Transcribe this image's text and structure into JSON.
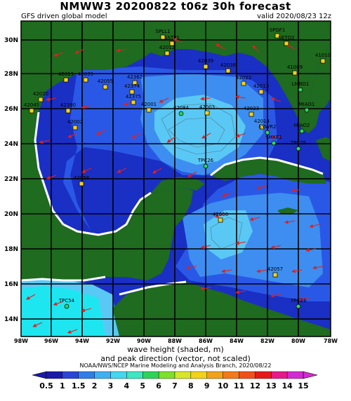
{
  "header": {
    "title": "NMWW3 20200822 t06z    30h forecast",
    "model": "GFS driven global model",
    "valid": "valid 2020/08/23 12z"
  },
  "axes": {
    "lat_labels": [
      "30N",
      "28N",
      "26N",
      "24N",
      "22N",
      "20N",
      "18N",
      "16N",
      "14N"
    ],
    "lon_labels": [
      "98W",
      "96W",
      "94W",
      "92W",
      "90W",
      "88W",
      "86W",
      "84W",
      "82W",
      "80W",
      "78W"
    ]
  },
  "stations": [
    {
      "id": "SPLL1",
      "type": "square"
    },
    {
      "id": "SSTP1",
      "type": "square"
    },
    {
      "id": "42012",
      "type": "square"
    },
    {
      "id": "42039",
      "type": "square"
    },
    {
      "id": "42036",
      "type": "square"
    },
    {
      "id": "41010",
      "type": "square"
    },
    {
      "id": "41009",
      "type": "square"
    },
    {
      "id": "42019",
      "type": "square"
    },
    {
      "id": "42035",
      "type": "square"
    },
    {
      "id": "42001",
      "type": "square"
    },
    {
      "id": "42002",
      "type": "square"
    },
    {
      "id": "42020",
      "type": "square"
    },
    {
      "id": "42045",
      "type": "square"
    },
    {
      "id": "42390",
      "type": "square"
    },
    {
      "id": "42362",
      "type": "square"
    },
    {
      "id": "42374",
      "type": "square"
    },
    {
      "id": "42375",
      "type": "square"
    },
    {
      "id": "42055",
      "type": "square"
    },
    {
      "id": "42056",
      "type": "square"
    },
    {
      "id": "42057",
      "type": "square"
    },
    {
      "id": "42058",
      "type": "square"
    },
    {
      "id": "42003",
      "type": "square"
    },
    {
      "id": "42023",
      "type": "square"
    },
    {
      "id": "42013",
      "type": "square"
    },
    {
      "id": "42014",
      "type": "square"
    },
    {
      "id": "42022",
      "type": "square"
    },
    {
      "id": "42084",
      "type": "circle"
    },
    {
      "id": "TPC26",
      "type": "circle"
    },
    {
      "id": "TPC25",
      "type": "circle"
    },
    {
      "id": "TPC23",
      "type": "circle"
    },
    {
      "id": "TPC54",
      "type": "circle"
    },
    {
      "id": "MIAO1",
      "type": "circle"
    },
    {
      "id": "MIAO2",
      "type": "circle"
    },
    {
      "id": "EYWR2",
      "type": "circle"
    },
    {
      "id": "LMBO1",
      "type": "circle"
    },
    {
      "id": "SMKF1",
      "type": "circle"
    },
    {
      "id": "SPGF1",
      "type": "square"
    },
    {
      "id": "SETO2",
      "type": "square"
    }
  ],
  "caption": {
    "line1": "wave height (shaded, m)",
    "line2": "and peak direction (vector, not scaled)",
    "credit": "NOAA/NWS/NCEP Marine Modeling and Analysis Branch, 2020/08/22"
  },
  "colorbar": {
    "unit": "m",
    "levels": [
      "0.5",
      "1",
      "1.5",
      "2",
      "3",
      "4",
      "5",
      "6",
      "7",
      "8",
      "9",
      "10",
      "11",
      "12",
      "13",
      "14",
      "15"
    ],
    "colors": [
      "#1a1aa8",
      "#2a45d6",
      "#2f7ee8",
      "#3fb0f2",
      "#45d6f0",
      "#3fe6c0",
      "#2ed45a",
      "#7ee02a",
      "#d8e62a",
      "#f2d21a",
      "#f2a21a",
      "#f27a1a",
      "#f0501a",
      "#e61a1a",
      "#e61a8a",
      "#d22ad2"
    ]
  },
  "colors": {
    "land": "#1f6b1f",
    "sea_0_5": "#1a2fc4",
    "sea_1": "#2a58e6",
    "sea_1_5": "#3d8ef0",
    "sea_2": "#5ac8f5",
    "sea_3": "#1ee6f0",
    "arrow": "#e02020",
    "grid": "#000000"
  }
}
